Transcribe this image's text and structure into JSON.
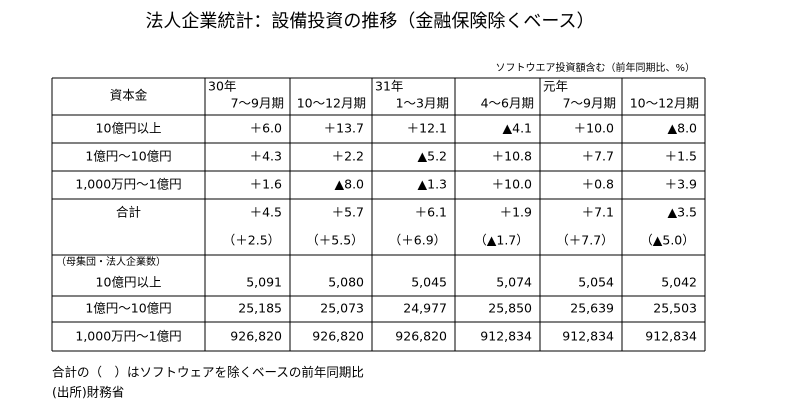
{
  "title": "法人企業統計：設備投資の推移（金融保険除くベース）",
  "note_top": "ソフトウエア投資額含む（前年同期比、%）",
  "table": {
    "header": {
      "label": "資本金",
      "columns": [
        {
          "year": "30年",
          "period": "7～9月期"
        },
        {
          "period": "10～12月期"
        },
        {
          "year": "31年",
          "period": "1～3月期"
        },
        {
          "period": "4～6月期"
        },
        {
          "year": "元年",
          "period": "7～9月期"
        },
        {
          "period": "10～12月期"
        }
      ]
    },
    "growth_rows": [
      {
        "label": "10億円以上",
        "values": [
          "＋6.0",
          "＋13.7",
          "＋12.1",
          "▲4.1",
          "＋10.0",
          "▲8.0"
        ]
      },
      {
        "label": "1億円～10億円",
        "values": [
          "＋4.3",
          "＋2.2",
          "▲5.2",
          "＋10.8",
          "＋7.7",
          "＋1.5"
        ]
      },
      {
        "label": "1,000万円～1億円",
        "values": [
          "＋1.6",
          "▲8.0",
          "▲1.3",
          "＋10.0",
          "＋0.8",
          "＋3.9"
        ]
      }
    ],
    "total_row": {
      "label": "合計",
      "values": [
        "＋4.5",
        "＋5.7",
        "＋6.1",
        "＋1.9",
        "＋7.1",
        "▲3.5"
      ],
      "sub_values": [
        "（＋2.5）",
        "（＋5.5）",
        "（＋6.9）",
        "（▲1.7）",
        "（＋7.7）",
        "（▲5.0）"
      ]
    },
    "count_section_label": "（母集団・法人企業数）",
    "count_rows": [
      {
        "label": "10億円以上",
        "values": [
          "5,091",
          "5,080",
          "5,045",
          "5,074",
          "5,054",
          "5,042"
        ]
      },
      {
        "label": "1億円～10億円",
        "values": [
          "25,185",
          "25,073",
          "24,977",
          "25,850",
          "25,639",
          "25,503"
        ]
      },
      {
        "label": "1,000万円～1億円",
        "values": [
          "926,820",
          "926,820",
          "926,820",
          "912,834",
          "912,834",
          "912,834"
        ]
      }
    ]
  },
  "footnotes": [
    "合計の（　）はソフトウェアを除くベースの前年同期比",
    "(出所)財務省"
  ]
}
